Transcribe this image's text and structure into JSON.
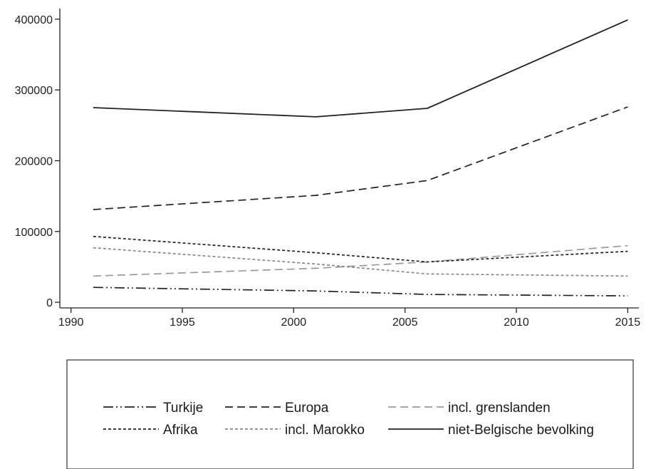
{
  "chart_data": {
    "type": "line",
    "title": "",
    "xlabel": "",
    "ylabel": "",
    "x": [
      1991,
      2001,
      2006,
      2015
    ],
    "xlim": [
      1989.5,
      2015.5
    ],
    "ylim": [
      -8000,
      415000
    ],
    "xticks": [
      1990,
      1995,
      2000,
      2005,
      2010,
      2015
    ],
    "yticks": [
      0,
      100000,
      200000,
      300000,
      400000
    ],
    "grid": false,
    "legend_position": "bottom",
    "series": [
      {
        "name": "Turkije",
        "values": [
          21000,
          16000,
          11000,
          9000
        ],
        "color": "#222222",
        "dash": "dash-dot-dot"
      },
      {
        "name": "Europa",
        "values": [
          131000,
          151000,
          172000,
          276000
        ],
        "color": "#222222",
        "dash": "long-dash"
      },
      {
        "name": "incl. grenslanden",
        "values": [
          37000,
          48000,
          57000,
          80000
        ],
        "color": "#999999",
        "dash": "long-dash"
      },
      {
        "name": "Afrika",
        "values": [
          93000,
          70000,
          57000,
          72000
        ],
        "color": "#222222",
        "dash": "short-dash"
      },
      {
        "name": "incl. Marokko",
        "values": [
          77000,
          54000,
          40000,
          37000
        ],
        "color": "#888888",
        "dash": "short-dash"
      },
      {
        "name": "niet-Belgische bevolking",
        "values": [
          275000,
          262000,
          274000,
          399000
        ],
        "color": "#222222",
        "dash": "solid"
      }
    ]
  }
}
